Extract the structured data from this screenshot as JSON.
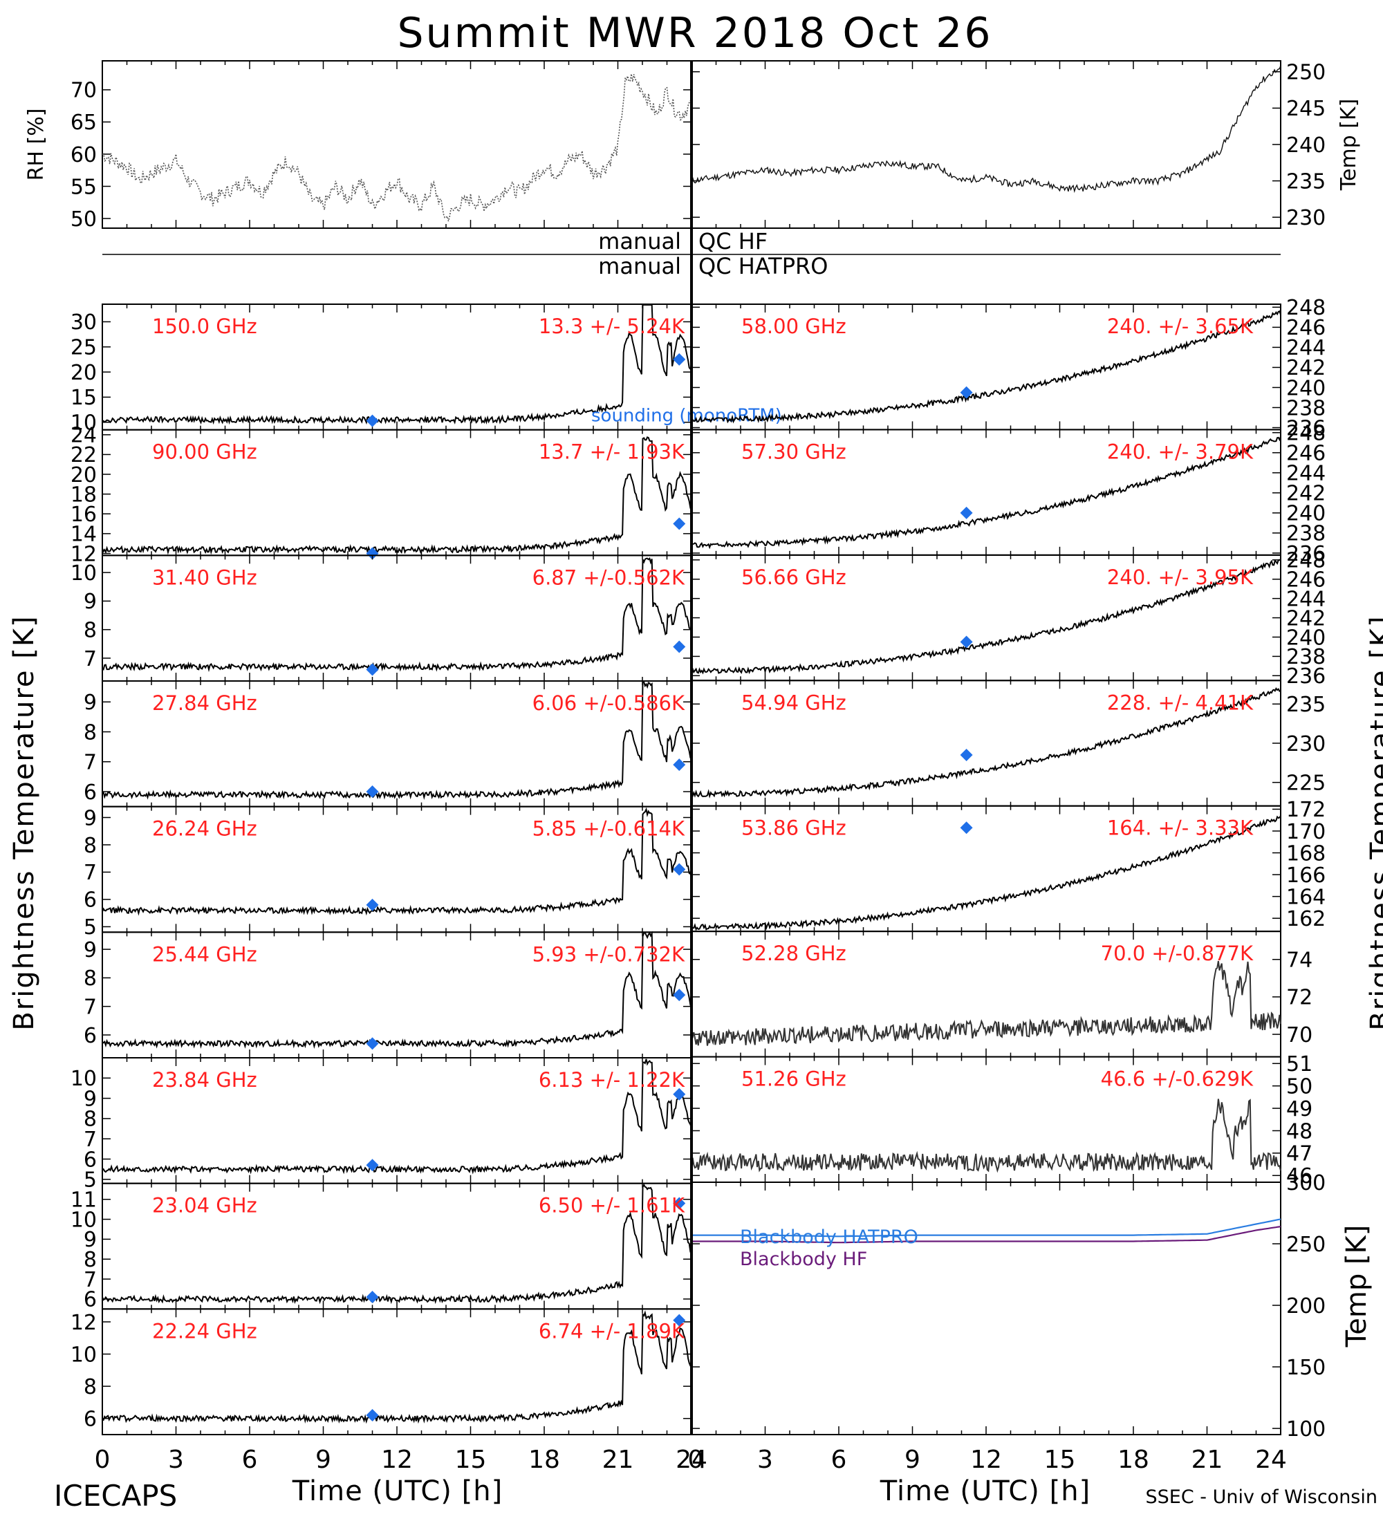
{
  "title": "Summit MWR 2018 Oct 26",
  "footer": {
    "left_label": "ICECAPS",
    "right_label": "SSEC - Univ of Wisconsin",
    "xlabel_left": "Time (UTC) [h]",
    "xlabel_right": "Time (UTC) [h]"
  },
  "labels": {
    "qc_hf": "QC HF",
    "qc_hatpro": "QC HATPRO",
    "manual_1": "manual",
    "manual_2": "manual",
    "left_ylabel": "Brightness Temperature [K]",
    "right_ylabel": "Brightness Temperature [K]",
    "rh_ylabel": "RH [%]",
    "temp_ylabel": "Temp [K]",
    "bb_temp_ylabel": "Temp [K]",
    "sounding_legend": "sounding (monoRTM)",
    "bb_hatpro": "Blackbody HATPRO",
    "bb_hf": "Blackbody HF"
  },
  "colors": {
    "data": "#000000",
    "channel_label": "#ff2020",
    "sounding": "#1f6fe8",
    "bb_hatpro": "#2a7de1",
    "bb_hf": "#6a1b7a"
  },
  "chart_data": [
    {
      "id": "rh",
      "type": "line",
      "ylabel": "RH [%]",
      "x": [
        0,
        0.5,
        1,
        1.5,
        2,
        2.5,
        3,
        3.5,
        4,
        4.5,
        5,
        5.5,
        6,
        6.5,
        7,
        7.5,
        8,
        8.5,
        9,
        9.5,
        10,
        10.5,
        11,
        11.5,
        12,
        12.5,
        13,
        13.5,
        14,
        14.5,
        15,
        15.5,
        16,
        16.5,
        17,
        17.5,
        18,
        18.5,
        19,
        19.5,
        20,
        20.5,
        21,
        21.3,
        21.6,
        22,
        22.3,
        22.6,
        23,
        23.3,
        23.6,
        24
      ],
      "values": [
        60,
        59,
        58,
        56,
        57,
        58,
        59,
        56,
        54,
        53,
        54,
        55,
        56,
        54,
        57,
        59,
        57,
        53,
        52,
        55,
        53,
        56,
        52,
        54,
        56,
        53,
        52,
        55,
        50,
        52,
        53,
        52,
        53,
        55,
        54,
        56,
        58,
        57,
        59,
        60,
        57,
        58,
        61,
        71,
        72,
        70,
        68,
        66,
        70,
        67,
        66,
        68
      ],
      "xlim": [
        0,
        24
      ],
      "ylim": [
        48.5,
        74.5
      ],
      "yticks": [
        50,
        55,
        60,
        65,
        70
      ]
    },
    {
      "id": "temp",
      "type": "line",
      "ylabel": "Temp [K]",
      "x": [
        0,
        1,
        2,
        3,
        4,
        5,
        6,
        7,
        8,
        9,
        10,
        11,
        12,
        13,
        14,
        15,
        16,
        17,
        18,
        19,
        20,
        21,
        21.5,
        22,
        22.5,
        23,
        23.5,
        24
      ],
      "values": [
        235,
        235.5,
        236,
        236.5,
        236,
        236.5,
        236.5,
        237,
        237.5,
        237,
        237,
        235,
        235.5,
        234.5,
        235,
        234,
        234,
        234.5,
        235,
        235,
        236,
        238,
        239,
        242,
        245,
        248,
        249.5,
        250.5
      ],
      "xlim": [
        0,
        24
      ],
      "ylim": [
        228.5,
        251.5
      ],
      "yticks": [
        230,
        235,
        240,
        245,
        250
      ]
    }
  ],
  "hf_channels": [
    {
      "label": "150.0 GHz",
      "stats": "13.3 +/- 5.24K",
      "yticks": [
        10,
        15,
        20,
        25,
        30
      ],
      "ylim": [
        8.5,
        33.5
      ],
      "base": 10.5,
      "peak": 26.5,
      "spike": 34,
      "sounding": [
        [
          11,
          10.3
        ],
        [
          23.5,
          22.5
        ]
      ]
    },
    {
      "label": "90.00 GHz",
      "stats": "13.7 +/- 1.93K",
      "yticks": [
        12,
        14,
        16,
        18,
        20,
        22,
        24
      ],
      "ylim": [
        11.8,
        24.5
      ],
      "base": 12.4,
      "peak": 19.5,
      "spike": 23.5,
      "sounding": [
        [
          11,
          12
        ],
        [
          23.5,
          15
        ]
      ]
    },
    {
      "label": "31.40 GHz",
      "stats": "6.87 +/-0.562K",
      "yticks": [
        7,
        8,
        9,
        10
      ],
      "ylim": [
        6.2,
        10.6
      ],
      "base": 6.7,
      "peak": 8.8,
      "spike": 10.4,
      "sounding": [
        [
          11,
          6.6
        ],
        [
          23.5,
          7.4
        ]
      ]
    },
    {
      "label": "27.84 GHz",
      "stats": "6.06 +/-0.586K",
      "yticks": [
        6,
        7,
        8,
        9
      ],
      "ylim": [
        5.5,
        9.7
      ],
      "base": 5.9,
      "peak": 8.0,
      "spike": 9.6,
      "sounding": [
        [
          11,
          6
        ],
        [
          23.5,
          6.9
        ]
      ]
    },
    {
      "label": "26.24 GHz",
      "stats": "5.85 +/-0.614K",
      "yticks": [
        5,
        6,
        7,
        8,
        9
      ],
      "ylim": [
        4.8,
        9.4
      ],
      "base": 5.6,
      "peak": 7.7,
      "spike": 9.2,
      "sounding": [
        [
          11,
          5.8
        ],
        [
          23.5,
          7.1
        ]
      ]
    },
    {
      "label": "25.44 GHz",
      "stats": "5.93 +/-0.732K",
      "yticks": [
        6,
        7,
        8,
        9
      ],
      "ylim": [
        5.2,
        9.6
      ],
      "base": 5.7,
      "peak": 8.0,
      "spike": 9.5,
      "sounding": [
        [
          11,
          5.7
        ],
        [
          23.5,
          7.4
        ]
      ]
    },
    {
      "label": "23.84 GHz",
      "stats": "6.13 +/- 1.22K",
      "yticks": [
        5,
        6,
        7,
        8,
        9,
        10
      ],
      "ylim": [
        4.8,
        11
      ],
      "base": 5.5,
      "peak": 9.0,
      "spike": 10.8,
      "sounding": [
        [
          11,
          5.7
        ],
        [
          23.5,
          9.2
        ]
      ]
    },
    {
      "label": "23.04 GHz",
      "stats": "6.50 +/- 1.61K",
      "yticks": [
        6,
        7,
        8,
        9,
        10,
        11
      ],
      "ylim": [
        5.5,
        11.8
      ],
      "base": 6.0,
      "peak": 10.0,
      "spike": 11.6,
      "sounding": [
        [
          11,
          6.1
        ],
        [
          23.5,
          10.8
        ]
      ]
    },
    {
      "label": "22.24 GHz",
      "stats": "6.74 +/- 1.89K",
      "yticks": [
        6,
        8,
        10,
        12
      ],
      "ylim": [
        5,
        12.8
      ],
      "base": 6.0,
      "peak": 11.2,
      "spike": 12.4,
      "sounding": [
        [
          11,
          6.2
        ],
        [
          23.5,
          12.1
        ]
      ]
    }
  ],
  "hatpro_channels": [
    {
      "label": "58.00 GHz",
      "stats": "240. +/- 3.65K",
      "yticks": [
        236,
        238,
        240,
        242,
        244,
        246,
        248
      ],
      "ylim": [
        235.8,
        248.3
      ],
      "start": 236.8,
      "end": 247.5,
      "sounding": [
        [
          11.2,
          239.5
        ]
      ]
    },
    {
      "label": "57.30 GHz",
      "stats": "240. +/- 3.79K",
      "yticks": [
        236,
        238,
        240,
        242,
        244,
        246,
        248
      ],
      "ylim": [
        235.8,
        248.3
      ],
      "start": 236.8,
      "end": 247.5,
      "sounding": [
        [
          11.2,
          240
        ]
      ]
    },
    {
      "label": "56.66 GHz",
      "stats": "240. +/- 3.95K",
      "yticks": [
        236,
        238,
        240,
        242,
        244,
        246,
        248
      ],
      "ylim": [
        235.5,
        248.5
      ],
      "start": 236.5,
      "end": 248,
      "sounding": [
        [
          11.2,
          239.5
        ]
      ]
    },
    {
      "label": "54.94 GHz",
      "stats": "228. +/- 4.41K",
      "yticks": [
        225,
        230,
        235
      ],
      "ylim": [
        222,
        238
      ],
      "start": 223.5,
      "end": 237,
      "sounding": [
        [
          11.2,
          228.5
        ]
      ]
    },
    {
      "label": "53.86 GHz",
      "stats": "164. +/- 3.33K",
      "yticks": [
        162,
        164,
        166,
        168,
        170,
        172
      ],
      "ylim": [
        160.8,
        172.3
      ],
      "start": 161.2,
      "end": 171.3,
      "sounding": [
        [
          11.2,
          170.3
        ]
      ]
    },
    {
      "label": "52.28 GHz",
      "stats": "70.0 +/-0.877K",
      "yticks": [
        70,
        72,
        74
      ],
      "ylim": [
        68.8,
        75.5
      ],
      "start": 69.8,
      "end": 70.7,
      "sounding": []
    },
    {
      "label": "51.26 GHz",
      "stats": "46.6 +/-0.629K",
      "yticks": [
        46,
        47,
        48,
        49,
        50,
        51
      ],
      "ylim": [
        45.7,
        51.3
      ],
      "start": 46.6,
      "end": 46.6,
      "sounding": []
    }
  ],
  "blackbody": {
    "yticks": [
      100,
      150,
      200,
      250,
      300
    ],
    "ylim": [
      95,
      300
    ],
    "x": [
      0,
      3,
      6,
      9,
      12,
      15,
      18,
      21,
      22,
      23,
      24
    ],
    "hatpro": [
      257,
      257,
      256,
      257,
      257,
      257,
      257,
      258,
      262,
      266,
      270
    ],
    "hf": [
      252,
      252,
      251,
      252,
      252,
      252,
      252,
      253,
      257,
      261,
      264
    ]
  },
  "xticks": [
    0,
    3,
    6,
    9,
    12,
    15,
    18,
    21,
    24
  ],
  "xticks_right": [
    0,
    3,
    6,
    9,
    12,
    15,
    18,
    21,
    24
  ]
}
